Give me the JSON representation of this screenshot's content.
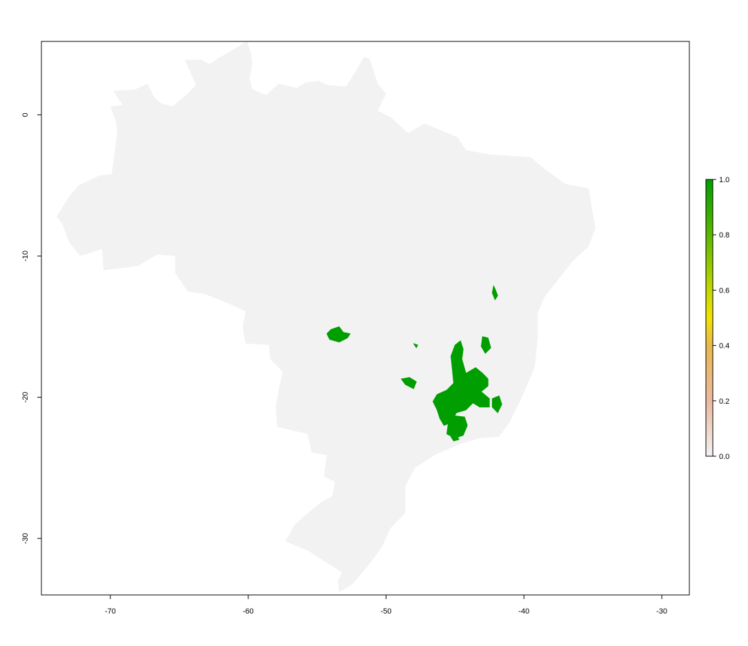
{
  "chart_data": {
    "type": "raster-map",
    "title": "",
    "xlabel": "",
    "ylabel": "",
    "xlim": [
      -75,
      -28
    ],
    "ylim": [
      -34,
      5.2
    ],
    "x_ticks": [
      {
        "value": -70,
        "label": "-70"
      },
      {
        "value": -60,
        "label": "-60"
      },
      {
        "value": -50,
        "label": "-50"
      },
      {
        "value": -40,
        "label": "-40"
      },
      {
        "value": -30,
        "label": "-30"
      }
    ],
    "y_ticks": [
      {
        "value": 0,
        "label": "0"
      },
      {
        "value": -10,
        "label": "-10"
      },
      {
        "value": -20,
        "label": "-20"
      },
      {
        "value": -30,
        "label": "-30"
      }
    ],
    "legend": {
      "type": "colorbar",
      "placement": "right",
      "range": [
        0,
        1
      ],
      "ticks": [
        {
          "value": 0.0,
          "label": "0.0"
        },
        {
          "value": 0.2,
          "label": "0.2"
        },
        {
          "value": 0.4,
          "label": "0.4"
        },
        {
          "value": 0.6,
          "label": "0.6"
        },
        {
          "value": 0.8,
          "label": "0.8"
        },
        {
          "value": 1.0,
          "label": "1.0"
        }
      ],
      "color_stops": [
        {
          "value": 0.0,
          "color": "#f2f2f2"
        },
        {
          "value": 0.2,
          "color": "#eab9a0"
        },
        {
          "value": 0.4,
          "color": "#eab84a"
        },
        {
          "value": 0.5,
          "color": "#f2e200"
        },
        {
          "value": 0.6,
          "color": "#c3d800"
        },
        {
          "value": 0.8,
          "color": "#5ab800"
        },
        {
          "value": 1.0,
          "color": "#009e00"
        }
      ]
    },
    "background_value": 0,
    "colors": {
      "land": "#f2f2f2",
      "presence": "#009e00",
      "frame": "#000000"
    },
    "region_outline": [
      [
        -57.8,
        2.2
      ],
      [
        -56.5,
        1.9
      ],
      [
        -55.8,
        2.3
      ],
      [
        -54.9,
        2.4
      ],
      [
        -54.2,
        2.1
      ],
      [
        -52.9,
        2.0
      ],
      [
        -52.2,
        3.1
      ],
      [
        -51.6,
        4.1
      ],
      [
        -51.2,
        4.0
      ],
      [
        -50.6,
        2.2
      ],
      [
        -50.0,
        1.5
      ],
      [
        -50.6,
        0.3
      ],
      [
        -49.6,
        -0.2
      ],
      [
        -48.4,
        -1.3
      ],
      [
        -47.2,
        -0.6
      ],
      [
        -46.0,
        -1.1
      ],
      [
        -44.8,
        -1.6
      ],
      [
        -44.2,
        -2.5
      ],
      [
        -42.5,
        -2.8
      ],
      [
        -41.0,
        -2.9
      ],
      [
        -39.5,
        -3.0
      ],
      [
        -38.4,
        -3.9
      ],
      [
        -37.0,
        -4.9
      ],
      [
        -35.3,
        -5.2
      ],
      [
        -35.0,
        -7.0
      ],
      [
        -34.8,
        -8.0
      ],
      [
        -35.3,
        -9.3
      ],
      [
        -36.5,
        -10.4
      ],
      [
        -37.3,
        -11.4
      ],
      [
        -38.5,
        -12.9
      ],
      [
        -39.0,
        -14.0
      ],
      [
        -39.0,
        -15.8
      ],
      [
        -39.2,
        -17.8
      ],
      [
        -39.7,
        -19.0
      ],
      [
        -40.3,
        -20.3
      ],
      [
        -41.0,
        -21.7
      ],
      [
        -41.8,
        -22.8
      ],
      [
        -43.2,
        -22.9
      ],
      [
        -44.6,
        -23.3
      ],
      [
        -46.3,
        -24.0
      ],
      [
        -47.9,
        -25.0
      ],
      [
        -48.6,
        -26.3
      ],
      [
        -48.6,
        -28.2
      ],
      [
        -49.7,
        -29.3
      ],
      [
        -50.3,
        -30.6
      ],
      [
        -51.2,
        -31.8
      ],
      [
        -52.5,
        -33.3
      ],
      [
        -53.4,
        -33.8
      ],
      [
        -53.5,
        -33.0
      ],
      [
        -53.2,
        -32.4
      ],
      [
        -54.5,
        -31.6
      ],
      [
        -55.6,
        -30.9
      ],
      [
        -57.3,
        -30.2
      ],
      [
        -56.6,
        -29.0
      ],
      [
        -55.8,
        -28.3
      ],
      [
        -54.8,
        -27.5
      ],
      [
        -53.9,
        -27.0
      ],
      [
        -53.7,
        -26.0
      ],
      [
        -54.5,
        -25.6
      ],
      [
        -54.3,
        -24.1
      ],
      [
        -55.4,
        -23.9
      ],
      [
        -55.7,
        -22.6
      ],
      [
        -57.9,
        -22.1
      ],
      [
        -58.0,
        -20.7
      ],
      [
        -57.8,
        -19.5
      ],
      [
        -57.5,
        -18.2
      ],
      [
        -58.4,
        -17.3
      ],
      [
        -58.5,
        -16.3
      ],
      [
        -60.2,
        -16.2
      ],
      [
        -60.4,
        -15.1
      ],
      [
        -60.2,
        -13.9
      ],
      [
        -61.1,
        -13.5
      ],
      [
        -62.1,
        -13.1
      ],
      [
        -63.1,
        -12.7
      ],
      [
        -64.4,
        -12.5
      ],
      [
        -65.3,
        -11.2
      ],
      [
        -65.3,
        -10.0
      ],
      [
        -66.6,
        -9.9
      ],
      [
        -68.0,
        -10.7
      ],
      [
        -69.5,
        -10.9
      ],
      [
        -70.5,
        -11.0
      ],
      [
        -70.6,
        -9.5
      ],
      [
        -72.2,
        -10.0
      ],
      [
        -73.0,
        -9.0
      ],
      [
        -73.5,
        -7.7
      ],
      [
        -73.9,
        -7.2
      ],
      [
        -73.0,
        -5.8
      ],
      [
        -72.3,
        -5.0
      ],
      [
        -70.8,
        -4.3
      ],
      [
        -69.9,
        -4.2
      ],
      [
        -69.5,
        -1.2
      ],
      [
        -69.6,
        -0.5
      ],
      [
        -70.0,
        0.6
      ],
      [
        -69.1,
        0.7
      ],
      [
        -69.4,
        1.1
      ],
      [
        -69.8,
        1.7
      ],
      [
        -68.2,
        1.8
      ],
      [
        -67.3,
        2.2
      ],
      [
        -66.8,
        1.2
      ],
      [
        -66.3,
        0.8
      ],
      [
        -65.5,
        0.6
      ],
      [
        -64.4,
        1.5
      ],
      [
        -63.8,
        2.1
      ],
      [
        -64.0,
        2.6
      ],
      [
        -64.6,
        3.9
      ],
      [
        -63.4,
        3.9
      ],
      [
        -62.8,
        3.6
      ],
      [
        -62.0,
        4.1
      ],
      [
        -61.3,
        4.5
      ],
      [
        -60.6,
        4.9
      ],
      [
        -60.1,
        5.2
      ],
      [
        -59.8,
        4.4
      ],
      [
        -59.7,
        3.6
      ],
      [
        -59.9,
        2.6
      ],
      [
        -59.7,
        1.8
      ],
      [
        -58.7,
        1.4
      ],
      [
        -57.8,
        2.2
      ]
    ],
    "presence_areas": [
      [
        [
          -54.0,
          -15.2
        ],
        [
          -53.4,
          -15.0
        ],
        [
          -53.1,
          -15.4
        ],
        [
          -52.6,
          -15.5
        ],
        [
          -52.8,
          -15.8
        ],
        [
          -53.4,
          -16.1
        ],
        [
          -54.1,
          -15.9
        ],
        [
          -54.3,
          -15.5
        ]
      ],
      [
        [
          -45.0,
          -16.3
        ],
        [
          -44.6,
          -16.0
        ],
        [
          -44.4,
          -16.6
        ],
        [
          -44.5,
          -17.3
        ],
        [
          -44.2,
          -18.3
        ],
        [
          -43.5,
          -17.9
        ],
        [
          -43.0,
          -18.3
        ],
        [
          -42.6,
          -18.7
        ],
        [
          -42.6,
          -19.2
        ],
        [
          -43.1,
          -19.6
        ],
        [
          -42.5,
          -20.1
        ],
        [
          -42.5,
          -20.7
        ],
        [
          -43.2,
          -20.7
        ],
        [
          -43.7,
          -20.4
        ],
        [
          -44.2,
          -20.9
        ],
        [
          -44.9,
          -21.1
        ],
        [
          -45.3,
          -21.8
        ],
        [
          -45.8,
          -22.0
        ],
        [
          -46.1,
          -21.5
        ],
        [
          -46.3,
          -20.9
        ],
        [
          -46.6,
          -20.3
        ],
        [
          -46.3,
          -19.8
        ],
        [
          -45.6,
          -19.5
        ],
        [
          -45.1,
          -19.0
        ],
        [
          -45.2,
          -18.0
        ],
        [
          -45.3,
          -17.1
        ]
      ],
      [
        [
          -45.1,
          -21.3
        ],
        [
          -44.3,
          -21.4
        ],
        [
          -44.1,
          -22.0
        ],
        [
          -44.4,
          -22.7
        ],
        [
          -45.0,
          -22.9
        ],
        [
          -45.6,
          -22.6
        ],
        [
          -45.5,
          -21.9
        ]
      ],
      [
        [
          -42.3,
          -20.1
        ],
        [
          -41.8,
          -19.9
        ],
        [
          -41.6,
          -20.5
        ],
        [
          -41.9,
          -21.1
        ],
        [
          -42.3,
          -20.7
        ]
      ],
      [
        [
          -48.9,
          -18.7
        ],
        [
          -48.3,
          -18.6
        ],
        [
          -47.8,
          -18.9
        ],
        [
          -48.0,
          -19.4
        ],
        [
          -48.6,
          -19.1
        ]
      ],
      [
        [
          -43.0,
          -15.7
        ],
        [
          -42.6,
          -15.8
        ],
        [
          -42.4,
          -16.5
        ],
        [
          -42.8,
          -16.9
        ],
        [
          -43.1,
          -16.4
        ]
      ],
      [
        [
          -45.3,
          -22.8
        ],
        [
          -44.9,
          -22.7
        ],
        [
          -44.7,
          -23.0
        ],
        [
          -45.1,
          -23.1
        ]
      ],
      [
        [
          -42.2,
          -12.1
        ],
        [
          -42.1,
          -12.3
        ],
        [
          -41.9,
          -12.8
        ],
        [
          -42.1,
          -13.1
        ],
        [
          -42.3,
          -12.6
        ]
      ],
      [
        [
          -48.0,
          -16.2
        ],
        [
          -47.7,
          -16.3
        ],
        [
          -47.8,
          -16.5
        ]
      ]
    ]
  }
}
